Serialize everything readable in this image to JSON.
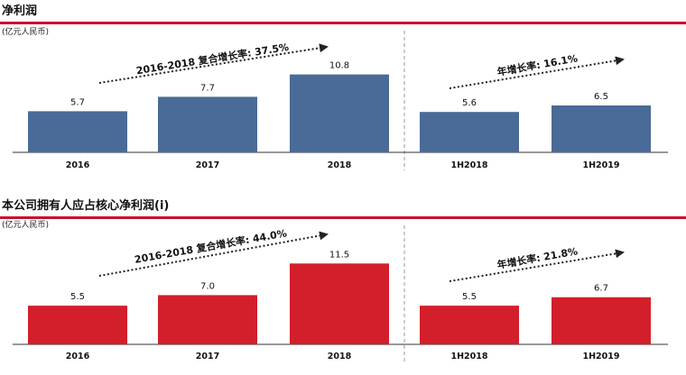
{
  "colors": {
    "blue": "#4a6a97",
    "red": "#d21f2b",
    "title_rule": "#c8102e",
    "axis": "#333333",
    "divider": "#9a9a9a"
  },
  "chart_data": [
    {
      "type": "bar",
      "title": "净利润",
      "unit_label": "(亿元人民币)",
      "categories": [
        "2016",
        "2017",
        "2018",
        "1H2018",
        "1H2019"
      ],
      "values": [
        5.7,
        7.7,
        10.8,
        5.6,
        6.5
      ],
      "value_labels": [
        "5.7",
        "7.7",
        "10.8",
        "5.6",
        "6.5"
      ],
      "bar_color": "#4a6a97",
      "annotations": [
        "2016-2018 复合增长率: 37.5%",
        "年增长率: 16.1%"
      ],
      "ylim": [
        0,
        12
      ]
    },
    {
      "type": "bar",
      "title": "本公司拥有人应占核心净利润(i)",
      "unit_label": "(亿元人民币)",
      "categories": [
        "2016",
        "2017",
        "2018",
        "1H2018",
        "1H2019"
      ],
      "values": [
        5.5,
        7.0,
        11.5,
        5.5,
        6.7
      ],
      "value_labels": [
        "5.5",
        "7.0",
        "11.5",
        "5.5",
        "6.7"
      ],
      "bar_color": "#d21f2b",
      "annotations": [
        "2016-2018 复合增长率: 44.0%",
        "年增长率: 21.8%"
      ],
      "ylim": [
        0,
        12
      ]
    }
  ]
}
